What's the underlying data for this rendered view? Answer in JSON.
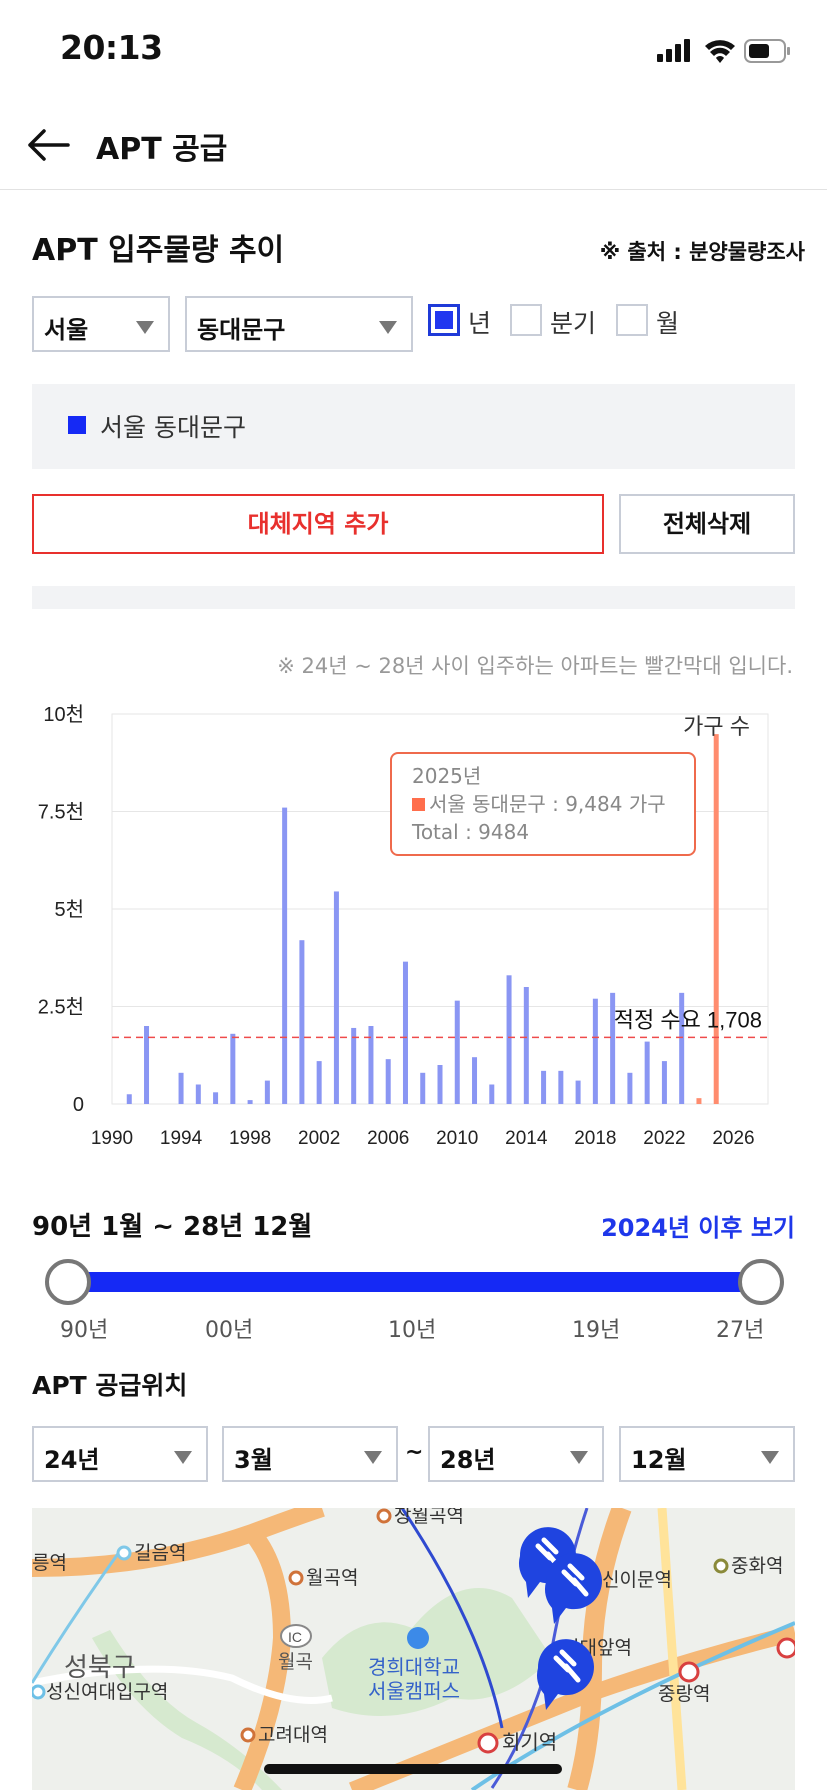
{
  "status": {
    "time": "20:13",
    "battery_icon": "battery-icon",
    "wifi_icon": "wifi-icon",
    "signal_icon": "signal-icon"
  },
  "nav": {
    "back_icon": "arrow-left-icon",
    "title": "APT 공급"
  },
  "section": {
    "title": "APT 입주물량 추이",
    "source": "※ 출처 : 분양물량조사"
  },
  "filters": {
    "region": "서울",
    "district": "동대문구",
    "period_options": [
      {
        "label": "년",
        "checked": true
      },
      {
        "label": "분기",
        "checked": false
      },
      {
        "label": "월",
        "checked": false
      }
    ]
  },
  "legend": {
    "label": "서울 동대문구",
    "color": "#1529f5"
  },
  "buttons": {
    "add_region": "대체지역 추가",
    "delete_all": "전체삭제"
  },
  "chart_note": "※ 24년 ~ 28년 사이 입주하는 아파트는 빨간막대 입니다.",
  "chart_data": {
    "type": "bar",
    "ylabel": "가구 수",
    "ylim": [
      0,
      10000
    ],
    "y_ticks": [
      "0",
      "2.5천",
      "5천",
      "7.5천",
      "10천"
    ],
    "x_ticks": [
      "1990",
      "1994",
      "1998",
      "2002",
      "2006",
      "2010",
      "2014",
      "2018",
      "2022",
      "2026"
    ],
    "x_range": [
      1990,
      2028
    ],
    "x": [
      1991,
      1992,
      1994,
      1995,
      1996,
      1997,
      1998,
      1999,
      2000,
      2001,
      2002,
      2003,
      2004,
      2005,
      2006,
      2007,
      2008,
      2009,
      2010,
      2011,
      2012,
      2013,
      2014,
      2015,
      2016,
      2017,
      2018,
      2019,
      2020,
      2021,
      2022,
      2023,
      2024,
      2025
    ],
    "values": [
      250,
      2000,
      800,
      500,
      300,
      1800,
      100,
      600,
      7600,
      4200,
      1100,
      5450,
      1950,
      2000,
      1150,
      3650,
      800,
      1000,
      2650,
      1200,
      500,
      3300,
      3000,
      850,
      850,
      600,
      2700,
      2850,
      800,
      1600,
      1100,
      2850,
      150,
      9484
    ],
    "highlight_from": 2024,
    "series_color": "#8a96f3",
    "highlight_color": "#ff8c6e",
    "reference_line": {
      "value": 1708,
      "label": "적정 수요 1,708",
      "color": "#ef4b4b"
    },
    "tooltip": {
      "title": "2025년",
      "series_line": "서울 동대문구 : 9,484 가구",
      "total_line": "Total : 9484"
    }
  },
  "period": {
    "label": "90년 1월 ~ 28년 12월",
    "link": "2024년 이후 보기"
  },
  "slider": {
    "ticks": [
      "90년",
      "00년",
      "10년",
      "19년",
      "27년"
    ],
    "start_fraction": 0.0,
    "end_fraction": 1.0
  },
  "location": {
    "title": "APT 공급위치",
    "from_year": "24년",
    "from_month": "3월",
    "tilde": "~",
    "to_year": "28년",
    "to_month": "12월"
  },
  "map": {
    "labels": [
      "장월곡역",
      "길음역",
      "월곡역",
      "신이문역",
      "중화역",
      "성북구",
      "월곡",
      "경희대학교",
      "서울캠퍼스",
      "외대앞역",
      "성신여대입구역",
      "중랑역",
      "고려대역",
      "회기역",
      "IC"
    ],
    "edge_label": "릉역",
    "pin_icon": "auction-hammer-pin-icon",
    "pin_count": 3
  }
}
